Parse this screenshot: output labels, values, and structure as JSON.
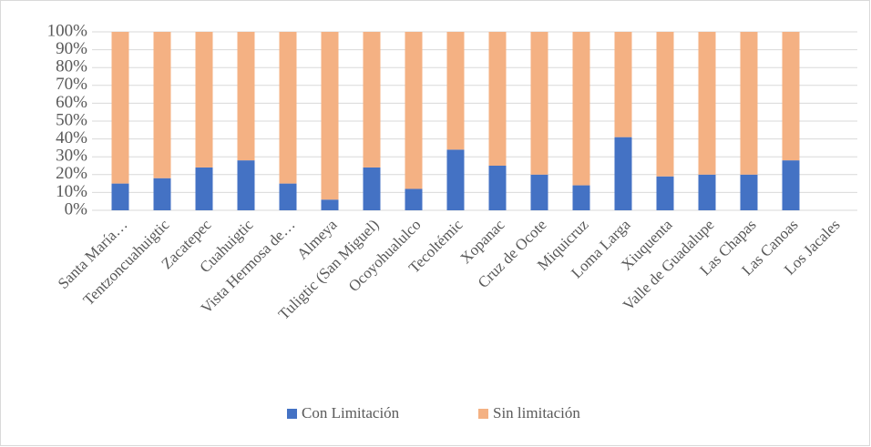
{
  "chart_data": {
    "type": "stacked_bar",
    "categories": [
      "Santa María…",
      "Tentzoncuahuigtic",
      "Zacatepec",
      "Cuahuigtic",
      "Vista Hermosa de…",
      "Almeya",
      "Tuligtic (San Miguel)",
      "Ocoyohualulco",
      "Tecoltémic",
      "Xopanac",
      "Cruz de Ocote",
      "Miquicruz",
      "Loma Larga",
      "Xiuquenta",
      "Valle de Guadalupe",
      "Las Chapas",
      "Las Canoas",
      "Los Jacales"
    ],
    "series": [
      {
        "name": "Con Limitación",
        "color": "#4472c4",
        "values": [
          15,
          18,
          24,
          28,
          15,
          6,
          24,
          12,
          34,
          25,
          20,
          14,
          41,
          19,
          20,
          20,
          28,
          null
        ]
      },
      {
        "name": "Sin limitación",
        "color": "#f4b183",
        "values": [
          85,
          82,
          76,
          72,
          85,
          94,
          76,
          88,
          66,
          75,
          80,
          86,
          59,
          81,
          80,
          80,
          72,
          null
        ]
      }
    ],
    "ylim": [
      0,
      100
    ],
    "yticks": [
      {
        "value": 0,
        "label": "0%"
      },
      {
        "value": 10,
        "label": "10%"
      },
      {
        "value": 20,
        "label": "20%"
      },
      {
        "value": 30,
        "label": "30%"
      },
      {
        "value": 40,
        "label": "40%"
      },
      {
        "value": 50,
        "label": "50%"
      },
      {
        "value": 60,
        "label": "60%"
      },
      {
        "value": 70,
        "label": "70%"
      },
      {
        "value": 80,
        "label": "80%"
      },
      {
        "value": 90,
        "label": "90%"
      },
      {
        "value": 100,
        "label": "100%"
      }
    ],
    "grid": true,
    "legend": "bottom"
  }
}
